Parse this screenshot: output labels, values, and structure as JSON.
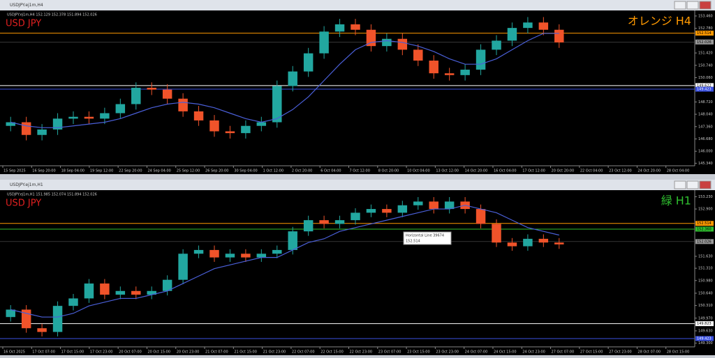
{
  "chart_data": [
    {
      "type": "candlestick",
      "window_title": "USDJPY.ej1m,H4",
      "info": "USDJPY.ej1m,H4  152.129 152.378 151.894 152.026",
      "label": "USD JPY",
      "annotation": "オレンジ H4",
      "annotation_color": "#ff9900",
      "ylim": [
        145.2,
        153.65
      ],
      "yticks": [
        {
          "value": 153.46,
          "label": "153.460"
        },
        {
          "value": 152.78,
          "label": "152.780"
        },
        {
          "value": 151.42,
          "label": "151.420"
        },
        {
          "value": 150.74,
          "label": "150.740"
        },
        {
          "value": 150.06,
          "label": "150.060"
        },
        {
          "value": 148.72,
          "label": "148.720"
        },
        {
          "value": 148.04,
          "label": "148.040"
        },
        {
          "value": 147.36,
          "label": "147.360"
        },
        {
          "value": 146.68,
          "label": "146.680"
        },
        {
          "value": 146.0,
          "label": "146.000"
        },
        {
          "value": 145.34,
          "label": "145.340"
        }
      ],
      "time_labels": [
        "15 Sep 2025",
        "16 Sep 20:00",
        "18 Sep 04:00",
        "19 Sep 12:00",
        "22 Sep 20:00",
        "24 Sep 04:00",
        "25 Sep 12:00",
        "26 Sep 20:00",
        "30 Sep 04:00",
        "1 Oct 12:00",
        "2 Oct 20:00",
        "6 Oct 04:00",
        "7 Oct 12:00",
        "8 Oct 20:00",
        "10 Oct 04:00",
        "13 Oct 12:00",
        "14 Oct 20:00",
        "16 Oct 04:00",
        "17 Oct 12:00",
        "20 Oct 20:00",
        "22 Oct 04:00",
        "23 Oct 12:00",
        "24 Oct 20:00",
        "28 Oct 04:00"
      ],
      "open": [
        147.4,
        147.6,
        146.9,
        147.2,
        147.8,
        147.9,
        147.8,
        148.1,
        148.6,
        149.5,
        149.4,
        148.9,
        148.2,
        147.7,
        147.1,
        147.0,
        147.4,
        147.6,
        149.6,
        150.4,
        151.4,
        152.6,
        153.0,
        152.7,
        151.8,
        152.2,
        151.6,
        151.0,
        150.3,
        150.2,
        150.5,
        151.6,
        152.1,
        152.8,
        153.1,
        152.7
      ],
      "high": [
        147.9,
        147.9,
        147.5,
        148.1,
        148.2,
        148.2,
        148.4,
        148.9,
        149.8,
        149.8,
        149.7,
        149.2,
        148.5,
        148.0,
        147.4,
        147.7,
        147.9,
        149.9,
        150.7,
        151.7,
        152.9,
        153.3,
        153.3,
        153.0,
        152.5,
        152.5,
        151.9,
        151.3,
        150.6,
        150.8,
        151.9,
        152.4,
        153.1,
        153.4,
        153.4,
        153.0
      ],
      "low": [
        147.1,
        146.6,
        146.6,
        146.9,
        147.5,
        147.5,
        147.5,
        147.8,
        148.3,
        149.1,
        148.6,
        147.9,
        147.4,
        146.8,
        146.7,
        146.7,
        147.1,
        147.3,
        149.3,
        150.1,
        151.1,
        152.3,
        152.4,
        151.5,
        151.5,
        151.3,
        150.7,
        150.0,
        149.9,
        149.9,
        150.2,
        151.3,
        151.8,
        152.5,
        152.4,
        151.7
      ],
      "close": [
        147.6,
        146.9,
        147.2,
        147.8,
        147.9,
        147.8,
        148.1,
        148.6,
        149.5,
        149.4,
        148.9,
        148.2,
        147.7,
        147.1,
        147.0,
        147.4,
        147.6,
        149.6,
        150.4,
        151.4,
        152.6,
        153.0,
        152.7,
        151.8,
        152.2,
        151.6,
        151.0,
        150.3,
        150.2,
        150.5,
        151.6,
        152.1,
        152.8,
        153.1,
        152.7,
        152.0
      ],
      "ma": {
        "color": "#4a5fd8",
        "values": [
          147.6,
          147.4,
          147.3,
          147.3,
          147.4,
          147.5,
          147.6,
          147.8,
          148.1,
          148.4,
          148.6,
          148.7,
          148.6,
          148.4,
          148.1,
          147.8,
          147.6,
          147.8,
          148.3,
          149.0,
          149.9,
          150.8,
          151.6,
          152.0,
          152.1,
          152.0,
          151.8,
          151.5,
          151.1,
          150.8,
          150.8,
          151.1,
          151.6,
          152.1,
          152.5,
          152.5
        ]
      },
      "hlines": [
        {
          "value": 152.514,
          "color": "#ff9900"
        },
        {
          "value": 149.622,
          "color": "#ffffff"
        },
        {
          "value": 149.423,
          "color": "#3a50e0"
        }
      ],
      "bid": 152.026
    },
    {
      "type": "candlestick",
      "window_title": "USDJPY.ej1m,H1",
      "info": "USDJPY.ej1m,H1  151.985 152.074 151.894 152.026",
      "label": "USD JPY",
      "annotation": "緑 H1",
      "annotation_color": "#2fbf2f",
      "ylim": [
        149.2,
        153.35
      ],
      "yticks": [
        {
          "value": 153.23,
          "label": "153.230"
        },
        {
          "value": 152.9,
          "label": "152.900"
        },
        {
          "value": 151.63,
          "label": "151.630"
        },
        {
          "value": 151.31,
          "label": "151.310"
        },
        {
          "value": 150.98,
          "label": "150.980"
        },
        {
          "value": 150.64,
          "label": "150.640"
        },
        {
          "value": 150.31,
          "label": "150.310"
        },
        {
          "value": 149.97,
          "label": "149.970"
        },
        {
          "value": 149.63,
          "label": "149.630"
        },
        {
          "value": 149.3,
          "label": "149.300"
        }
      ],
      "time_labels": [
        "16 Oct 2025",
        "17 Oct 07:00",
        "17 Oct 15:00",
        "17 Oct 23:00",
        "20 Oct 07:00",
        "20 Oct 15:00",
        "20 Oct 23:00",
        "21 Oct 07:00",
        "21 Oct 15:00",
        "21 Oct 23:00",
        "22 Oct 07:00",
        "22 Oct 15:00",
        "22 Oct 23:00",
        "23 Oct 07:00",
        "23 Oct 15:00",
        "23 Oct 23:00",
        "24 Oct 07:00",
        "24 Oct 15:00",
        "24 Oct 23:00",
        "27 Oct 07:00",
        "27 Oct 15:00",
        "27 Oct 23:00",
        "28 Oct 07:00",
        "28 Oct 15:00"
      ],
      "open": [
        150.0,
        150.2,
        149.7,
        149.6,
        150.3,
        150.5,
        150.9,
        150.6,
        150.7,
        150.6,
        150.7,
        151.0,
        151.7,
        151.8,
        151.6,
        151.7,
        151.6,
        151.7,
        151.8,
        152.3,
        152.6,
        152.5,
        152.6,
        152.8,
        152.9,
        152.8,
        153.0,
        153.1,
        152.9,
        153.1,
        152.9,
        152.5,
        152.0,
        151.9,
        152.1,
        152.0
      ],
      "high": [
        150.32,
        150.32,
        149.82,
        150.42,
        150.62,
        151.02,
        151.02,
        150.82,
        150.82,
        150.82,
        151.12,
        151.82,
        151.92,
        151.92,
        151.82,
        151.82,
        151.82,
        151.92,
        152.42,
        152.72,
        152.72,
        152.72,
        152.92,
        153.02,
        153.02,
        153.12,
        153.22,
        153.22,
        153.22,
        153.22,
        153.02,
        152.62,
        152.12,
        152.22,
        152.22,
        152.12
      ],
      "low": [
        149.88,
        149.58,
        149.48,
        149.48,
        150.18,
        150.38,
        150.48,
        150.48,
        150.48,
        150.48,
        150.58,
        150.88,
        151.58,
        151.48,
        151.48,
        151.48,
        151.48,
        151.58,
        151.68,
        152.18,
        152.38,
        152.38,
        152.48,
        152.68,
        152.68,
        152.68,
        152.88,
        152.78,
        152.78,
        152.78,
        152.38,
        151.88,
        151.78,
        151.78,
        151.88,
        151.83
      ],
      "close": [
        150.2,
        149.7,
        149.6,
        150.3,
        150.5,
        150.9,
        150.6,
        150.7,
        150.6,
        150.7,
        151.0,
        151.7,
        151.8,
        151.6,
        151.7,
        151.6,
        151.7,
        151.8,
        152.3,
        152.6,
        152.5,
        152.6,
        152.8,
        152.9,
        152.8,
        153.0,
        153.1,
        152.9,
        153.1,
        152.9,
        152.5,
        152.0,
        151.9,
        152.1,
        152.0,
        151.95
      ],
      "ma": {
        "color": "#4a5fd8",
        "values": [
          150.2,
          150.1,
          150.0,
          150.0,
          150.1,
          150.3,
          150.4,
          150.5,
          150.5,
          150.6,
          150.7,
          150.9,
          151.1,
          151.3,
          151.4,
          151.5,
          151.6,
          151.6,
          151.8,
          152.0,
          152.1,
          152.3,
          152.4,
          152.5,
          152.6,
          152.7,
          152.8,
          152.9,
          152.9,
          153.0,
          152.9,
          152.8,
          152.6,
          152.4,
          152.3,
          152.2
        ]
      },
      "hlines": [
        {
          "value": 152.514,
          "color": "#ff9900"
        },
        {
          "value": 152.36,
          "label": "152.360",
          "color": "#2fbf2f"
        },
        {
          "value": 149.823,
          "color": "#ffffff"
        },
        {
          "value": 149.423,
          "color": "#3a50e0"
        }
      ],
      "bid": 152.026,
      "tooltip": {
        "title": "Horizontal Line 39674",
        "value": 152.514
      }
    }
  ]
}
